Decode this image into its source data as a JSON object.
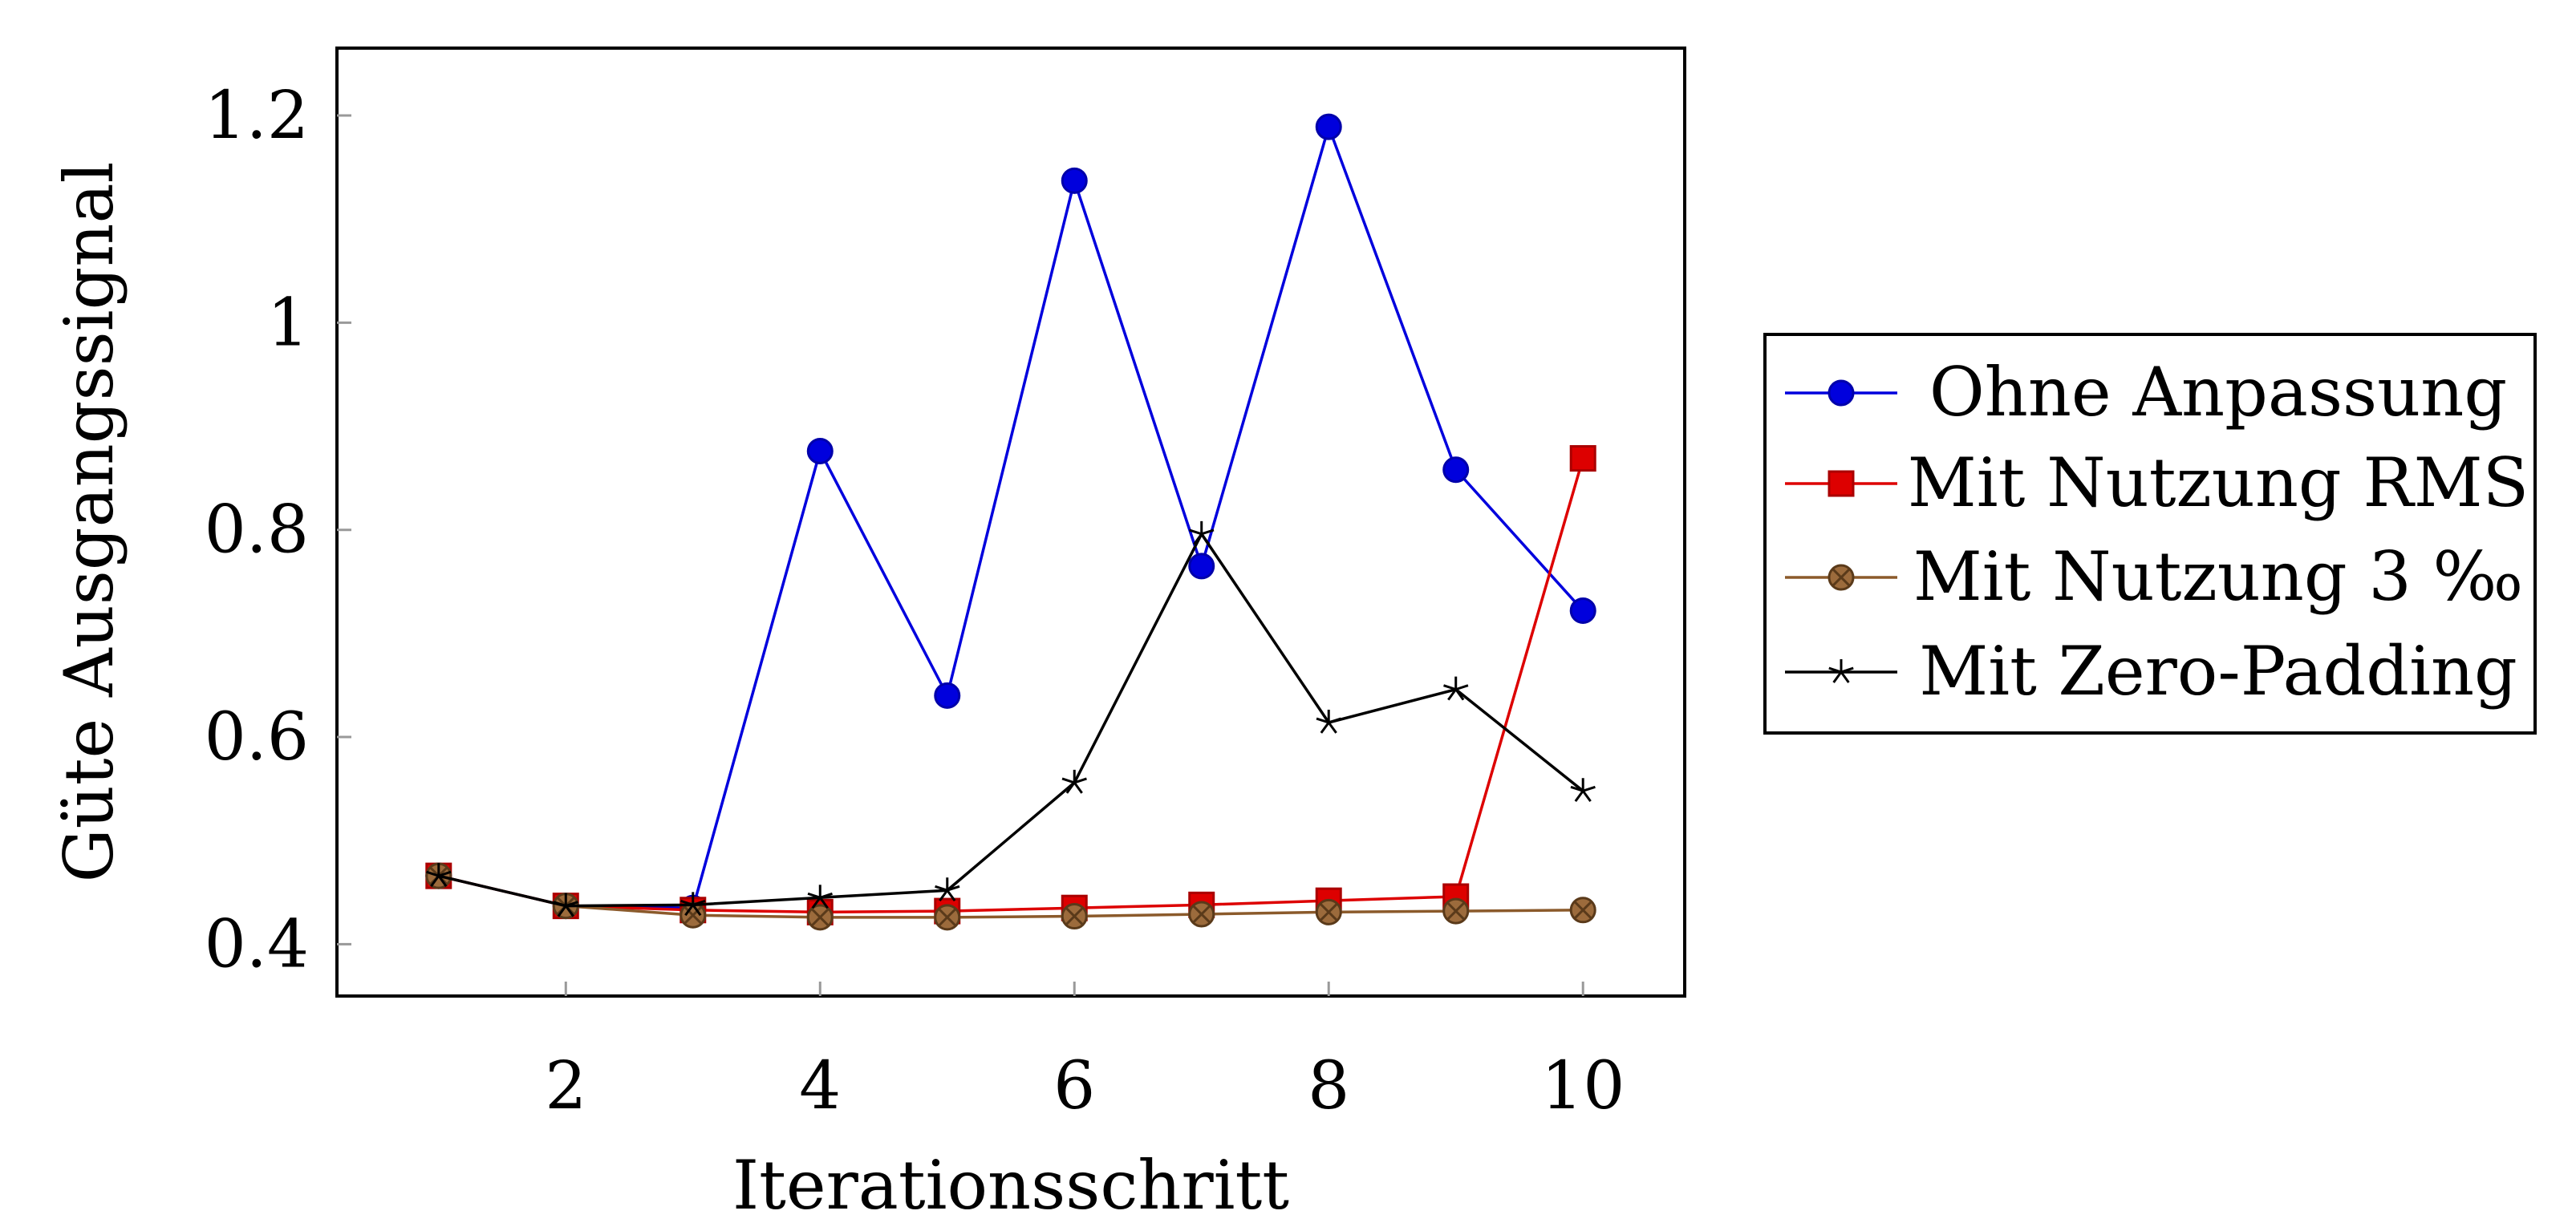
{
  "chart_data": {
    "type": "line",
    "xlabel": "Iterationsschritt",
    "ylabel": "Güte Ausgangssignal",
    "xlim": [
      0.2,
      10.8
    ],
    "ylim": [
      0.35,
      1.265
    ],
    "xticks": [
      2,
      4,
      6,
      8,
      10
    ],
    "yticks": [
      0.4,
      0.6,
      0.8,
      1.0,
      1.2
    ],
    "xtick_labels": [
      "2",
      "4",
      "6",
      "8",
      "10"
    ],
    "ytick_labels": [
      "0.4",
      "0.6",
      "0.8",
      "1",
      "1.2"
    ],
    "grid": false,
    "legend_position": "right-outside",
    "x": [
      1,
      2,
      3,
      4,
      5,
      6,
      7,
      8,
      9,
      10
    ],
    "series": [
      {
        "name": "Ohne Anpassung",
        "color": "#0000dd",
        "marker": "circle",
        "values": [
          0.466,
          0.437,
          0.435,
          0.876,
          0.64,
          1.137,
          0.765,
          1.189,
          0.858,
          0.722
        ]
      },
      {
        "name": "Mit Nutzung RMS",
        "color": "#dd0000",
        "marker": "square",
        "values": [
          0.466,
          0.437,
          0.433,
          0.431,
          0.432,
          0.435,
          0.438,
          0.442,
          0.446,
          0.869
        ]
      },
      {
        "name": "Mit Nutzung 3 ‰",
        "color": "#8b5a2b",
        "marker": "otimes",
        "values": [
          0.466,
          0.437,
          0.428,
          0.426,
          0.426,
          0.427,
          0.429,
          0.431,
          0.432,
          0.433
        ]
      },
      {
        "name": "Mit Zero-Padding",
        "color": "#000000",
        "marker": "star",
        "values": [
          0.466,
          0.437,
          0.438,
          0.445,
          0.452,
          0.556,
          0.796,
          0.614,
          0.646,
          0.548
        ]
      }
    ]
  }
}
